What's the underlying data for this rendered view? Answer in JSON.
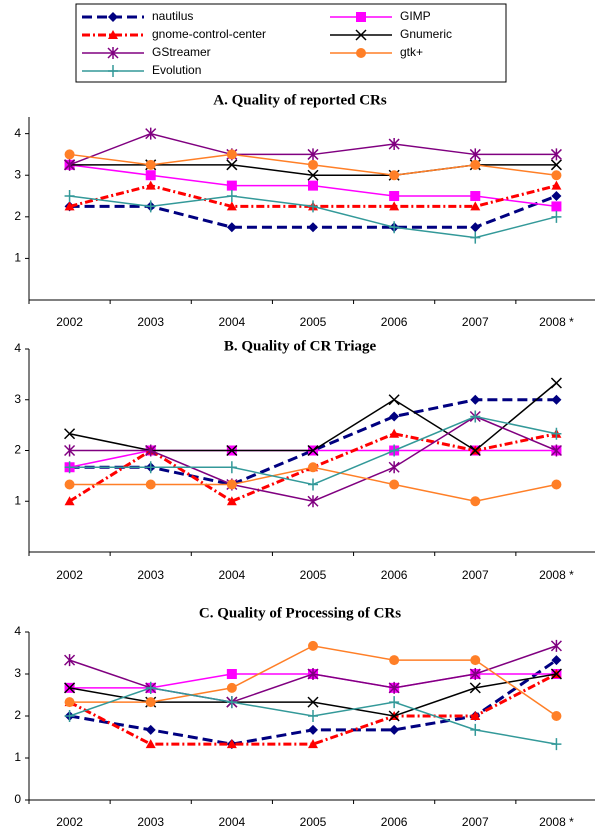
{
  "chart_data": [
    {
      "type": "line",
      "title": "A. Quality of reported CRs",
      "categories": [
        "2002",
        "2003",
        "2004",
        "2005",
        "2006",
        "2007",
        "2008 *"
      ],
      "ylim": [
        0,
        4.4
      ],
      "yticks": [
        1,
        2,
        3,
        4
      ],
      "series": [
        {
          "name": "nautilus",
          "color": "#000080",
          "marker": "diamond",
          "dash": "10,5",
          "values": [
            2.25,
            2.25,
            1.75,
            1.75,
            1.75,
            1.75,
            2.5
          ]
        },
        {
          "name": "GIMP",
          "color": "#ff00ff",
          "marker": "square",
          "dash": "none",
          "values": [
            3.25,
            3,
            2.75,
            2.75,
            2.5,
            2.5,
            2.25
          ]
        },
        {
          "name": "gnome-control-center",
          "color": "#ff0000",
          "marker": "triangle",
          "dash": "8,3,2,3",
          "values": [
            2.25,
            2.75,
            2.25,
            2.25,
            2.25,
            2.25,
            2.75
          ]
        },
        {
          "name": "Gnumeric",
          "color": "#000000",
          "marker": "x",
          "dash": "none",
          "values": [
            3.25,
            3.25,
            3.25,
            3,
            3,
            3.25,
            3.25
          ]
        },
        {
          "name": "GStreamer",
          "color": "#800080",
          "marker": "star",
          "dash": "none",
          "values": [
            3.25,
            4,
            3.5,
            3.5,
            3.75,
            3.5,
            3.5
          ]
        },
        {
          "name": "gtk+",
          "color": "#ff7f27",
          "marker": "circle",
          "dash": "none",
          "values": [
            3.5,
            3.25,
            3.5,
            3.25,
            3,
            3.25,
            3
          ]
        },
        {
          "name": "Evolution",
          "color": "#339999",
          "marker": "plus",
          "dash": "none",
          "values": [
            2.5,
            2.25,
            2.5,
            2.25,
            1.75,
            1.5,
            2
          ]
        }
      ]
    },
    {
      "type": "line",
      "title": "B. Quality of CR Triage",
      "categories": [
        "2002",
        "2003",
        "2004",
        "2005",
        "2006",
        "2007",
        "2008 *"
      ],
      "ylim": [
        0,
        4
      ],
      "yticks": [
        1,
        2,
        3,
        4
      ],
      "series": [
        {
          "color": "#000080",
          "marker": "diamond",
          "dash": "10,5",
          "values": [
            1.67,
            1.67,
            1.33,
            2,
            2.67,
            3,
            3
          ]
        },
        {
          "color": "#ff00ff",
          "marker": "square",
          "dash": "none",
          "values": [
            1.67,
            2,
            2,
            2,
            2,
            2,
            2
          ]
        },
        {
          "color": "#ff0000",
          "marker": "triangle",
          "dash": "8,3,2,3",
          "values": [
            1,
            2,
            1,
            1.67,
            2.33,
            2,
            2.33
          ]
        },
        {
          "color": "#000000",
          "marker": "x",
          "dash": "none",
          "values": [
            2.33,
            2,
            2,
            2,
            3,
            2,
            3.33
          ]
        },
        {
          "color": "#800080",
          "marker": "star",
          "dash": "none",
          "values": [
            2,
            2,
            1.33,
            1,
            1.67,
            2.67,
            2
          ]
        },
        {
          "color": "#ff7f27",
          "marker": "circle",
          "dash": "none",
          "values": [
            1.33,
            1.33,
            1.33,
            1.67,
            1.33,
            1,
            1.33
          ]
        },
        {
          "color": "#339999",
          "marker": "plus",
          "dash": "none",
          "values": [
            1.67,
            1.67,
            1.67,
            1.33,
            2,
            2.67,
            2.33
          ]
        }
      ]
    },
    {
      "type": "line",
      "title": "C. Quality of Processing of CRs",
      "categories": [
        "2002",
        "2003",
        "2004",
        "2005",
        "2006",
        "2007",
        "2008 *"
      ],
      "ylim": [
        0,
        4
      ],
      "yticks": [
        0,
        1,
        2,
        3,
        4
      ],
      "series": [
        {
          "color": "#000080",
          "marker": "diamond",
          "dash": "10,5",
          "values": [
            2,
            1.67,
            1.33,
            1.67,
            1.67,
            2,
            3.33
          ]
        },
        {
          "color": "#ff00ff",
          "marker": "square",
          "dash": "none",
          "values": [
            2.67,
            2.67,
            3,
            3,
            2.67,
            3,
            3
          ]
        },
        {
          "color": "#ff0000",
          "marker": "triangle",
          "dash": "8,3,2,3",
          "values": [
            2.33,
            1.33,
            1.33,
            1.33,
            2,
            2,
            3
          ]
        },
        {
          "color": "#000000",
          "marker": "x",
          "dash": "none",
          "values": [
            2.67,
            2.33,
            2.33,
            2.33,
            2,
            2.67,
            3
          ]
        },
        {
          "color": "#800080",
          "marker": "star",
          "dash": "none",
          "values": [
            3.33,
            2.67,
            2.33,
            3,
            2.67,
            3,
            3.67
          ]
        },
        {
          "color": "#ff7f27",
          "marker": "circle",
          "dash": "none",
          "values": [
            2.33,
            2.33,
            2.67,
            3.67,
            3.33,
            3.33,
            2
          ]
        },
        {
          "color": "#339999",
          "marker": "plus",
          "dash": "none",
          "values": [
            2,
            2.67,
            2.33,
            2,
            2.33,
            1.67,
            1.33
          ]
        }
      ]
    }
  ]
}
